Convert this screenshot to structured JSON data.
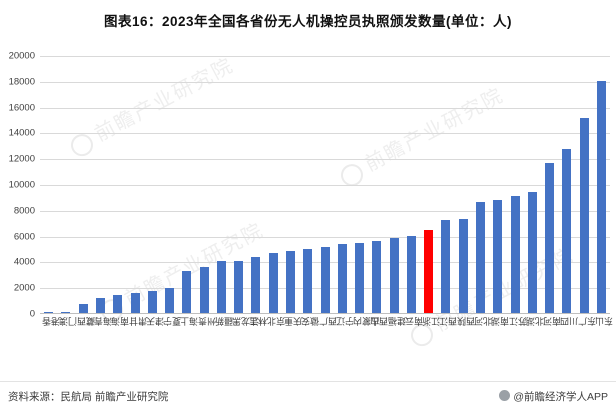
{
  "title": "图表16：2023年全国各省份无人机操控员执照颁发数量(单位：人)",
  "chart_data": {
    "type": "bar",
    "title": "图表16：2023年全国各省份无人机操控员执照颁发数量(单位：人)",
    "unit": "人",
    "categories": [
      "香港",
      "澳门",
      "西藏",
      "青海",
      "海南",
      "甘肃",
      "天津",
      "宁夏",
      "上海",
      "贵州",
      "新疆",
      "黑龙江",
      "吉林",
      "北京",
      "重庆",
      "安徽",
      "广西",
      "辽宁",
      "内蒙古",
      "山西",
      "福建",
      "云南",
      "浙江",
      "江西",
      "陕西",
      "河北",
      "湖南",
      "江苏",
      "湖北",
      "河南",
      "四川",
      "广东",
      "山东"
    ],
    "values": [
      16,
      47,
      715,
      1180,
      1360,
      1560,
      1740,
      1970,
      3280,
      3590,
      4000,
      4050,
      4360,
      4620,
      4770,
      4950,
      5120,
      5330,
      5450,
      5560,
      5800,
      5950,
      6400,
      7180,
      7250,
      8640,
      8790,
      9100,
      9350,
      11600,
      12700,
      15100,
      18000
    ],
    "highlight_category": "浙江",
    "highlight_index": 22,
    "bar_color": "#4472C4",
    "highlight_color": "#FF0000",
    "ylim": [
      0,
      20000
    ],
    "ytick_interval": 2000,
    "yticks": [
      0,
      2000,
      4000,
      6000,
      8000,
      10000,
      12000,
      14000,
      16000,
      18000,
      20000
    ],
    "grid": "horizontal",
    "legend": "none",
    "xlabel": "",
    "ylabel": ""
  },
  "watermark": {
    "text": "前瞻产业研究院",
    "logo": "qianzhan-circle-logo"
  },
  "footer": {
    "source": "资料来源：民航局 前瞻产业研究院",
    "brand": "@前瞻经济学人APP"
  }
}
